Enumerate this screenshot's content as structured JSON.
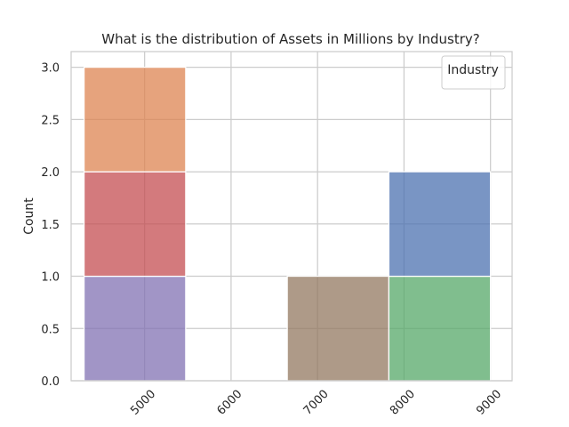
{
  "chart_data": {
    "type": "bar",
    "subtype": "stacked-histogram",
    "title": "What is the distribution of Assets in Millions by Industry?",
    "xlabel": "",
    "ylabel": "Count",
    "xlim": [
      4150,
      9250
    ],
    "ylim": [
      0,
      3.15
    ],
    "xticks": [
      5000,
      6000,
      7000,
      8000,
      9000
    ],
    "yticks": [
      0.0,
      0.5,
      1.0,
      1.5,
      2.0,
      2.5,
      3.0
    ],
    "ytick_labels": [
      "0.0",
      "0.5",
      "1.0",
      "1.5",
      "2.0",
      "2.5",
      "3.0"
    ],
    "xtick_rotation": 45,
    "grid": true,
    "legend": {
      "title": "Industry",
      "placement": "top-right",
      "entries": []
    },
    "bins": [
      {
        "x0": 4300,
        "x1": 5475
      },
      {
        "x0": 5475,
        "x1": 6650
      },
      {
        "x0": 6650,
        "x1": 7825
      },
      {
        "x0": 7825,
        "x1": 9000
      }
    ],
    "series": [
      {
        "color": "#8172b3",
        "values": [
          1,
          0,
          0,
          0
        ]
      },
      {
        "color": "#c44e52",
        "values": [
          1,
          0,
          0,
          0
        ]
      },
      {
        "color": "#dd8452",
        "values": [
          1,
          0,
          0,
          0
        ]
      },
      {
        "color": "#937860",
        "values": [
          0,
          0,
          1,
          0
        ]
      },
      {
        "color": "#55a868",
        "values": [
          0,
          0,
          0,
          1
        ]
      },
      {
        "color": "#4c72b0",
        "values": [
          0,
          0,
          0,
          1
        ]
      }
    ]
  }
}
